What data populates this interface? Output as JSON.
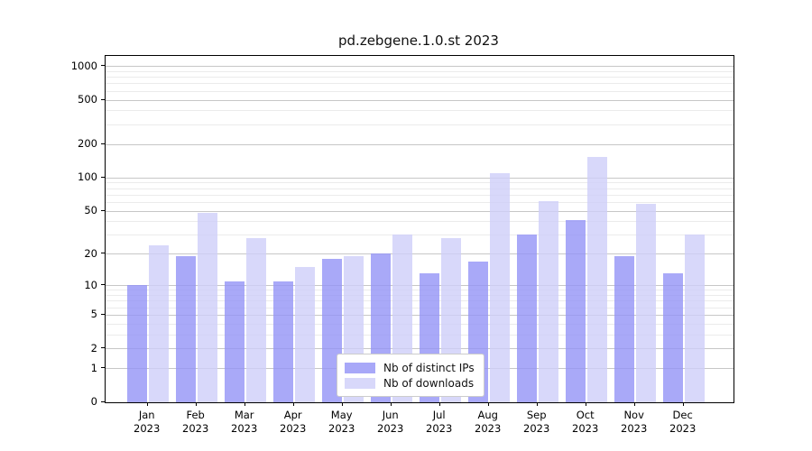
{
  "title": "pd.zebgene.1.0.st 2023",
  "chart_data": {
    "type": "bar",
    "title": "pd.zebgene.1.0.st 2023",
    "xlabel": "",
    "ylabel": "",
    "yscale": "log1p",
    "ylim": [
      0,
      1000
    ],
    "yticks": [
      1000,
      500,
      200,
      100,
      50,
      20,
      10,
      5,
      2,
      1,
      0
    ],
    "minor_grid_values": [
      3,
      4,
      6,
      7,
      8,
      9,
      30,
      40,
      60,
      70,
      80,
      90,
      300,
      400,
      600,
      700,
      800,
      900
    ],
    "grid": "both",
    "legend_position": "inside-bottom-center",
    "categories": [
      "Jan 2023",
      "Feb 2023",
      "Mar 2023",
      "Apr 2023",
      "May 2023",
      "Jun 2023",
      "Jul 2023",
      "Aug 2023",
      "Sep 2023",
      "Oct 2023",
      "Nov 2023",
      "Dec 2023"
    ],
    "x_tick_line1": [
      "Jan",
      "Feb",
      "Mar",
      "Apr",
      "May",
      "Jun",
      "Jul",
      "Aug",
      "Sep",
      "Oct",
      "Nov",
      "Dec"
    ],
    "x_tick_line2": [
      "2023",
      "2023",
      "2023",
      "2023",
      "2023",
      "2023",
      "2023",
      "2023",
      "2023",
      "2023",
      "2023",
      "2023"
    ],
    "series": [
      {
        "name": "Nb of distinct IPs",
        "color": "rgba(147,147,246,0.8)",
        "legend_color": "#a8a8f8",
        "values": [
          10,
          19,
          11,
          11,
          18,
          20,
          13,
          17,
          30,
          41,
          19,
          13
        ]
      },
      {
        "name": "Nb of downloads",
        "color": "rgba(206,206,249,0.8)",
        "legend_color": "#d8d8fa",
        "values": [
          24,
          48,
          28,
          15,
          19,
          30,
          28,
          110,
          61,
          154,
          58,
          30
        ]
      }
    ]
  },
  "colors": {
    "grid_major": "rgba(0,0,0,0.22)",
    "grid_minor": "rgba(0,0,0,0.08)",
    "spine": "#000000",
    "background": "#ffffff"
  }
}
